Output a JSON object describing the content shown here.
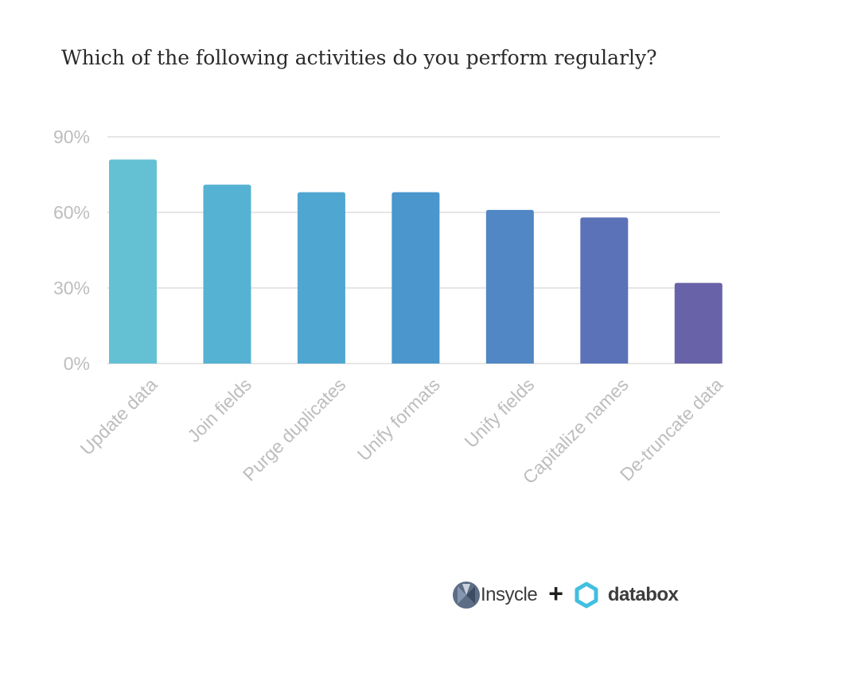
{
  "chart_data": {
    "type": "bar",
    "title": "Which of the following activities do you perform regularly?",
    "categories": [
      "Update data",
      "Join fields",
      "Purge duplicates",
      "Unify formats",
      "Unify fields",
      "Capitalize names",
      "De-truncate data"
    ],
    "values": [
      81,
      71,
      68,
      68,
      61,
      58,
      32
    ],
    "value_unit": "%",
    "ylim": [
      0,
      90
    ],
    "yticks": [
      "0%",
      "30%",
      "60%",
      "90%"
    ],
    "ytick_values": [
      0,
      30,
      60,
      90
    ],
    "grid": true,
    "bar_colors": [
      "#64c1d3",
      "#56b2d3",
      "#4fa6d0",
      "#4a96cd",
      "#5087c4",
      "#5b72b8",
      "#6863a8"
    ],
    "gridline_color": "#e6e6e6"
  },
  "branding": {
    "insycle": "Insycle",
    "plus": "+",
    "databox": "databox",
    "insycle_icon": "insycle-logo-icon",
    "databox_icon": "databox-logo-icon",
    "databox_color": "#41bfe0"
  }
}
